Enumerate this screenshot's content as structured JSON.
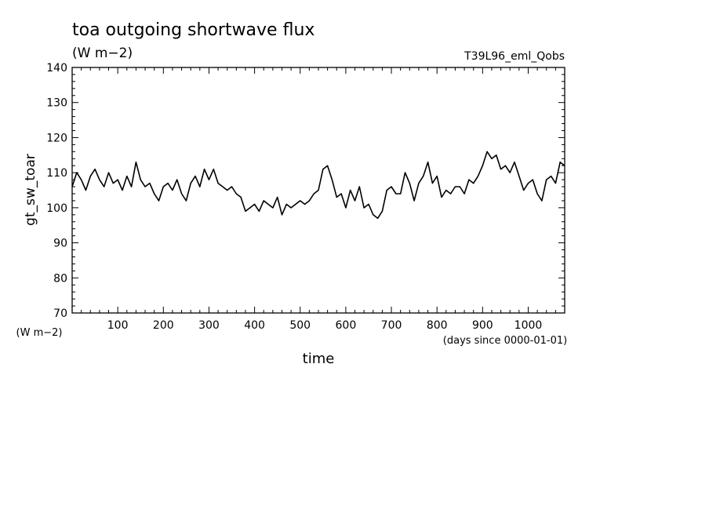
{
  "chart_data": {
    "type": "line",
    "title": "toa outgoing shortwave flux",
    "units": "(W m−2)",
    "run_label": "T39L96_eml_Qobs",
    "ylabel": "gt_sw_toar",
    "y_units_label": "(W m−2)",
    "xlabel": "time",
    "x_units_label": "(days since 0000-01-01)",
    "xlim": [
      0,
      1080
    ],
    "ylim": [
      70,
      140
    ],
    "x_ticks": [
      100,
      200,
      300,
      400,
      500,
      600,
      700,
      800,
      900,
      1000
    ],
    "x_tick_labels": [
      "100",
      "200",
      "300",
      "400",
      "500",
      "600",
      "700",
      "800",
      "900",
      "1000"
    ],
    "y_ticks": [
      70,
      80,
      90,
      100,
      110,
      120,
      130,
      140
    ],
    "y_tick_labels": [
      "70",
      "80",
      "90",
      "100",
      "110",
      "120",
      "130",
      "140"
    ],
    "grid": false,
    "line_color": "#000000",
    "series": [
      {
        "x": [
          0,
          10,
          20,
          30,
          40,
          50,
          60,
          70,
          80,
          90,
          100,
          110,
          120,
          130,
          140,
          150,
          160,
          170,
          180,
          190,
          200,
          210,
          220,
          230,
          240,
          250,
          260,
          270,
          280,
          290,
          300,
          310,
          320,
          330,
          340,
          350,
          360,
          370,
          380,
          390,
          400,
          410,
          420,
          430,
          440,
          450,
          460,
          470,
          480,
          490,
          500,
          510,
          520,
          530,
          540,
          550,
          560,
          570,
          580,
          590,
          600,
          610,
          620,
          630,
          640,
          650,
          660,
          670,
          680,
          690,
          700,
          710,
          720,
          730,
          740,
          750,
          760,
          770,
          780,
          790,
          800,
          810,
          820,
          830,
          840,
          850,
          860,
          870,
          880,
          890,
          900,
          910,
          920,
          930,
          940,
          950,
          960,
          970,
          980,
          990,
          1000,
          1010,
          1020,
          1030,
          1040,
          1050,
          1060,
          1070,
          1080
        ],
        "y": [
          106,
          110,
          108,
          105,
          109,
          111,
          108,
          106,
          110,
          107,
          108,
          105,
          109,
          106,
          113,
          108,
          106,
          107,
          104,
          102,
          106,
          107,
          105,
          108,
          104,
          102,
          107,
          109,
          106,
          111,
          108,
          111,
          107,
          106,
          105,
          106,
          104,
          103,
          99,
          100,
          101,
          99,
          102,
          101,
          100,
          103,
          98,
          101,
          100,
          101,
          102,
          101,
          102,
          104,
          105,
          111,
          112,
          108,
          103,
          104,
          100,
          105,
          102,
          106,
          100,
          101,
          98,
          97,
          99,
          105,
          106,
          104,
          104,
          110,
          107,
          102,
          107,
          109,
          113,
          107,
          109,
          103,
          105,
          104,
          106,
          106,
          104,
          108,
          107,
          109,
          112,
          116,
          114,
          115,
          111,
          112,
          110,
          113,
          109,
          105,
          107,
          108,
          104,
          102,
          108,
          109,
          107,
          113,
          112
        ]
      }
    ]
  }
}
